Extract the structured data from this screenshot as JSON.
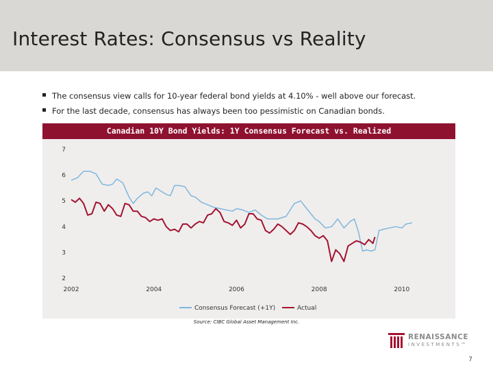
{
  "slide": {
    "title": "Interest Rates: Consensus vs Reality",
    "bullets": [
      "The consensus view calls for 10-year federal bond yields at 4.10% - well above our forecast.",
      "For the last decade, consensus has always been too pessimistic on Canadian bonds."
    ],
    "source": "Source: CIBC Global Asset Management Inc.",
    "page_number": "7",
    "logo": {
      "name": "RENAISSANCE",
      "sub": "INVESTMENTS™"
    }
  },
  "colors": {
    "consensus": "#7fb6dc",
    "actual": "#a3122f",
    "header": "#8e1230",
    "panel": "#efeeed"
  },
  "chart_data": {
    "type": "line",
    "title": "Canadian 10Y Bond Yields: 1Y Consensus Forecast vs. Realized",
    "xlabel": "",
    "ylabel": "",
    "xlim": [
      2002,
      2010.5
    ],
    "ylim": [
      2,
      7
    ],
    "x_ticks": [
      2002,
      2004,
      2006,
      2008,
      2010
    ],
    "x_tick_labels": [
      "2002",
      "2004",
      "2006",
      "2008",
      "2010"
    ],
    "y_ticks": [
      2,
      3,
      4,
      5,
      6,
      7
    ],
    "y_tick_labels": [
      "2",
      "3",
      "4",
      "5",
      "6",
      "7"
    ],
    "legend": {
      "position": "bottom-center"
    },
    "series": [
      {
        "name": "Consensus Forecast  (+1Y)",
        "x": [
          2002.0,
          2002.15,
          2002.3,
          2002.45,
          2002.6,
          2002.75,
          2002.9,
          2003.0,
          2003.1,
          2003.25,
          2003.4,
          2003.5,
          2003.6,
          2003.75,
          2003.85,
          2003.95,
          2004.05,
          2004.2,
          2004.3,
          2004.4,
          2004.5,
          2004.6,
          2004.75,
          2004.9,
          2005.0,
          2005.15,
          2005.3,
          2005.45,
          2005.6,
          2005.75,
          2005.9,
          2006.0,
          2006.15,
          2006.3,
          2006.45,
          2006.6,
          2006.75,
          2006.9,
          2007.0,
          2007.1,
          2007.2,
          2007.3,
          2007.4,
          2007.55,
          2007.7,
          2007.8,
          2007.9,
          2008.0,
          2008.15,
          2008.3,
          2008.45,
          2008.6,
          2008.75,
          2008.85,
          2008.95,
          2009.05,
          2009.15,
          2009.25,
          2009.35,
          2009.45,
          2009.55,
          2009.7,
          2009.85,
          2010.0,
          2010.1,
          2010.25
        ],
        "y": [
          5.8,
          5.9,
          6.15,
          6.15,
          6.05,
          5.65,
          5.6,
          5.65,
          5.85,
          5.7,
          5.15,
          4.9,
          5.1,
          5.3,
          5.35,
          5.2,
          5.5,
          5.35,
          5.25,
          5.2,
          5.6,
          5.6,
          5.55,
          5.2,
          5.15,
          4.95,
          4.85,
          4.75,
          4.7,
          4.65,
          4.6,
          4.7,
          4.65,
          4.55,
          4.65,
          4.45,
          4.3,
          4.3,
          4.3,
          4.35,
          4.4,
          4.65,
          4.9,
          5.0,
          4.7,
          4.5,
          4.3,
          4.2,
          3.95,
          4.0,
          4.3,
          3.95,
          4.2,
          4.3,
          3.8,
          3.05,
          3.1,
          3.05,
          3.1,
          3.85,
          3.9,
          3.95,
          4.0,
          3.95,
          4.1,
          4.15
        ]
      },
      {
        "name": "Actual",
        "x": [
          2002.0,
          2002.1,
          2002.2,
          2002.3,
          2002.4,
          2002.5,
          2002.6,
          2002.7,
          2002.8,
          2002.9,
          2003.0,
          2003.1,
          2003.2,
          2003.3,
          2003.4,
          2003.5,
          2003.6,
          2003.7,
          2003.8,
          2003.9,
          2004.0,
          2004.1,
          2004.2,
          2004.3,
          2004.4,
          2004.5,
          2004.6,
          2004.7,
          2004.8,
          2004.9,
          2005.0,
          2005.1,
          2005.2,
          2005.3,
          2005.4,
          2005.5,
          2005.6,
          2005.7,
          2005.8,
          2005.9,
          2006.0,
          2006.1,
          2006.2,
          2006.3,
          2006.4,
          2006.5,
          2006.6,
          2006.7,
          2006.8,
          2006.9,
          2007.0,
          2007.1,
          2007.2,
          2007.3,
          2007.4,
          2007.5,
          2007.6,
          2007.7,
          2007.8,
          2007.9,
          2008.0,
          2008.1,
          2008.2,
          2008.3,
          2008.4,
          2008.5,
          2008.6,
          2008.7,
          2008.8,
          2008.9,
          2009.0,
          2009.05,
          2009.1,
          2009.2,
          2009.3,
          2009.35
        ],
        "y": [
          5.05,
          4.95,
          5.1,
          4.9,
          4.45,
          4.5,
          4.95,
          4.9,
          4.6,
          4.85,
          4.7,
          4.45,
          4.4,
          4.9,
          4.85,
          4.6,
          4.6,
          4.4,
          4.35,
          4.2,
          4.3,
          4.25,
          4.3,
          4.0,
          3.85,
          3.9,
          3.8,
          4.1,
          4.1,
          3.95,
          4.1,
          4.2,
          4.15,
          4.45,
          4.5,
          4.7,
          4.55,
          4.2,
          4.15,
          4.05,
          4.25,
          3.95,
          4.1,
          4.5,
          4.5,
          4.3,
          4.25,
          3.85,
          3.75,
          3.9,
          4.1,
          4.0,
          3.85,
          3.7,
          3.85,
          4.15,
          4.1,
          4.0,
          3.85,
          3.65,
          3.55,
          3.65,
          3.45,
          2.65,
          3.1,
          2.95,
          2.65,
          3.25,
          3.35,
          3.45,
          3.4,
          3.35,
          3.3,
          3.5,
          3.35,
          3.6
        ]
      }
    ]
  }
}
